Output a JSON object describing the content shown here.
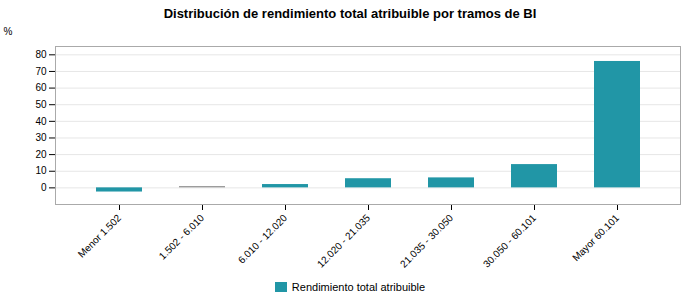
{
  "chart_data": {
    "type": "bar",
    "title": "Distribución de rendimiento total atribuible por tramos de BI",
    "categories": [
      "Menor 1.502",
      "1.502 - 6.010",
      "6.010 - 12.020",
      "12.020 - 21.035",
      "21.035 - 30.050",
      "30.050 - 60.101",
      "Mayor 60.101"
    ],
    "series": [
      {
        "name": "Rendimiento total atribuible",
        "color": "#2196a6",
        "colors": [
          "#2196a6",
          "#999999",
          "#2196a6",
          "#2196a6",
          "#2196a6",
          "#2196a6",
          "#2196a6"
        ],
        "values": [
          -2.5,
          0.8,
          2.0,
          5.5,
          6.0,
          14.0,
          76.0
        ]
      }
    ],
    "ylabel": "%",
    "ylim": [
      -10,
      85
    ],
    "yticks": [
      0,
      10,
      20,
      30,
      40,
      50,
      60,
      70,
      80
    ],
    "grid": true,
    "legend": "bottom"
  }
}
